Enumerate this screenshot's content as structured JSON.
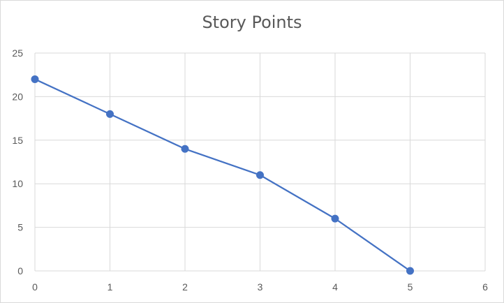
{
  "chart_data": {
    "type": "scatter",
    "title": "Story Points",
    "xlabel": "",
    "ylabel": "",
    "x": [
      0,
      1,
      2,
      3,
      4,
      5
    ],
    "series": [
      {
        "values": [
          22,
          18,
          14,
          11,
          6,
          0
        ]
      }
    ],
    "xlim": [
      0,
      6
    ],
    "ylim": [
      0,
      25
    ],
    "x_ticks": [
      "0",
      "1",
      "2",
      "3",
      "4",
      "5",
      "6"
    ],
    "y_ticks": [
      "0",
      "5",
      "10",
      "15",
      "20",
      "25"
    ],
    "lines_connected": true,
    "markers": "circle",
    "grid": true,
    "legend": "none",
    "colors": {
      "series": "#4472c4",
      "grid": "#d9d9d9",
      "text": "#595959"
    }
  }
}
